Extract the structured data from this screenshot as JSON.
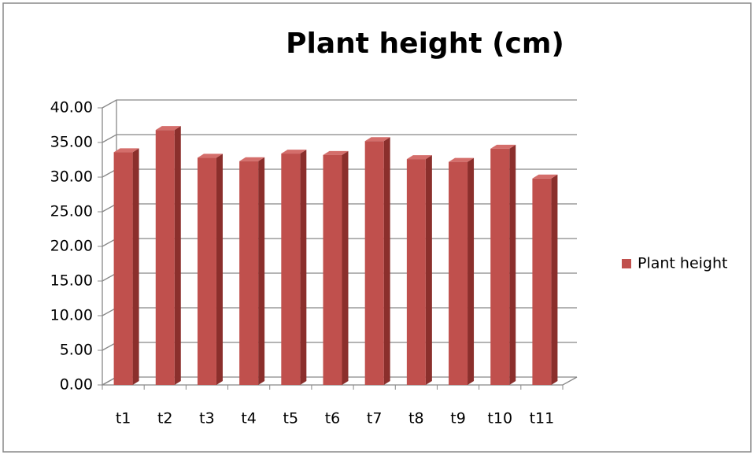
{
  "chart_data": {
    "type": "bar3d",
    "title": "Plant height (cm)",
    "categories": [
      "t1",
      "t2",
      "t3",
      "t4",
      "t5",
      "t6",
      "t7",
      "t8",
      "t9",
      "t10",
      "t11"
    ],
    "series": [
      {
        "name": "Plant height",
        "color": "#c0504d",
        "values": [
          33.6,
          36.8,
          32.8,
          32.3,
          33.4,
          33.2,
          35.2,
          32.6,
          32.2,
          34.1,
          29.8
        ]
      }
    ],
    "ylim": [
      0,
      40
    ],
    "yticks": [
      {
        "value": 0,
        "label": "0.00"
      },
      {
        "value": 5,
        "label": "5.00"
      },
      {
        "value": 10,
        "label": "10.00"
      },
      {
        "value": 15,
        "label": "15.00"
      },
      {
        "value": 20,
        "label": "20.00"
      },
      {
        "value": 25,
        "label": "25.00"
      },
      {
        "value": 30,
        "label": "30.00"
      },
      {
        "value": 35,
        "label": "35.00"
      },
      {
        "value": 40,
        "label": "40.00"
      }
    ],
    "grid": true,
    "legend": "right"
  }
}
